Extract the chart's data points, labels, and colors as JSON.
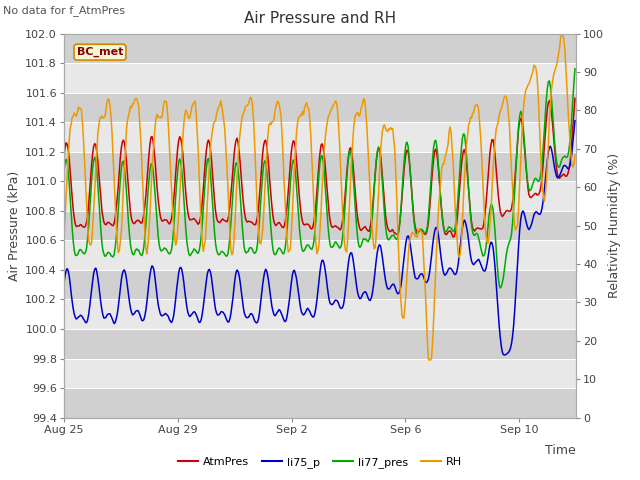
{
  "title": "Air Pressure and RH",
  "top_left_text": "No data for f_AtmPres",
  "box_label": "BC_met",
  "xlabel": "Time",
  "ylabel_left": "Air Pressure (kPa)",
  "ylabel_right": "Relativity Humidity (%)",
  "ylim_left": [
    99.4,
    102.0
  ],
  "ylim_right": [
    0,
    100
  ],
  "yticks_left": [
    99.4,
    99.6,
    99.8,
    100.0,
    100.2,
    100.4,
    100.6,
    100.8,
    101.0,
    101.2,
    101.4,
    101.6,
    101.8,
    102.0
  ],
  "yticks_right": [
    0,
    10,
    20,
    30,
    40,
    50,
    60,
    70,
    80,
    90,
    100
  ],
  "x_tick_labels": [
    "Aug 25",
    "Aug 29",
    "Sep 2",
    "Sep 6",
    "Sep 10"
  ],
  "legend": [
    {
      "label": "AtmPres",
      "color": "#cc0000"
    },
    {
      "label": "li75_p",
      "color": "#0000cc"
    },
    {
      "label": "li77_pres",
      "color": "#00aa00"
    },
    {
      "label": "RH",
      "color": "#ee9900"
    }
  ],
  "background_color": "#ffffff",
  "plot_bg_light": "#e8e8e8",
  "plot_bg_dark": "#d0d0d0",
  "n_points": 500
}
